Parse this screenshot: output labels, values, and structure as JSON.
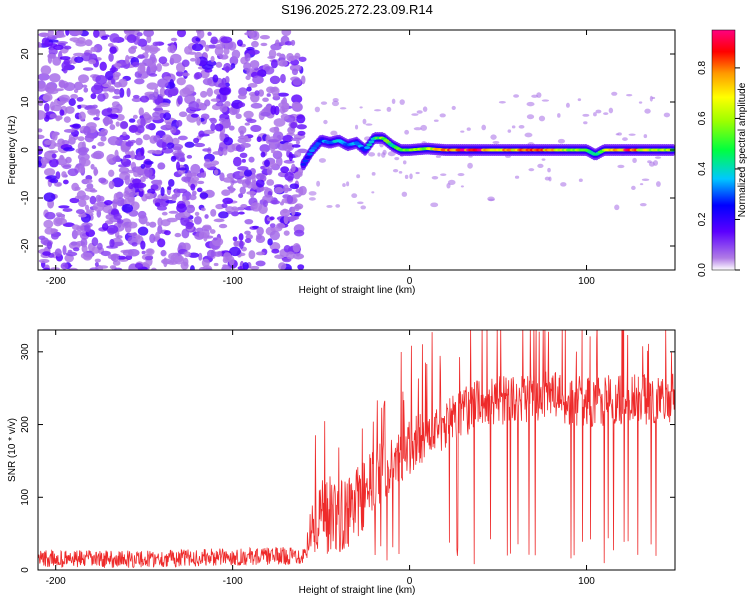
{
  "chart_data": [
    {
      "type": "heatmap",
      "title": "S196.2025.272.23.09.R14",
      "xlabel": "Height of straight line (km)",
      "ylabel": "Frequency (Hz)",
      "xlim": [
        -210,
        150
      ],
      "ylim": [
        -25,
        25
      ],
      "x_ticks": [
        -200,
        -100,
        0,
        100
      ],
      "x_tick_labels": [
        "-200",
        "-100",
        "0",
        "100"
      ],
      "y_ticks": [
        -20,
        -10,
        0,
        10,
        20
      ],
      "y_tick_labels": [
        "-20",
        "-10",
        "0",
        "10",
        "20"
      ],
      "noise_region_x": [
        -210,
        -60
      ],
      "colorbar": {
        "label": "Normalized spectral amplitude",
        "range": [
          0,
          0.95
        ],
        "ticks": [
          0.0,
          0.2,
          0.4,
          0.6,
          0.8
        ],
        "tick_labels": [
          "0.0",
          "0.2",
          "0.4",
          "0.6",
          "0.8"
        ]
      },
      "signal_track": [
        {
          "x": -60,
          "y": -3,
          "amp": 0.25
        },
        {
          "x": -55,
          "y": 0,
          "amp": 0.3
        },
        {
          "x": -50,
          "y": 2,
          "amp": 0.3
        },
        {
          "x": -45,
          "y": 1.5,
          "amp": 0.35
        },
        {
          "x": -40,
          "y": 2,
          "amp": 0.35
        },
        {
          "x": -35,
          "y": 1,
          "amp": 0.3
        },
        {
          "x": -30,
          "y": 1.5,
          "amp": 0.35
        },
        {
          "x": -25,
          "y": 0,
          "amp": 0.3
        },
        {
          "x": -20,
          "y": 2.5,
          "amp": 0.45
        },
        {
          "x": -15,
          "y": 2.5,
          "amp": 0.55
        },
        {
          "x": -10,
          "y": 1,
          "amp": 0.45
        },
        {
          "x": -5,
          "y": 0,
          "amp": 0.5
        },
        {
          "x": 0,
          "y": 0,
          "amp": 0.55
        },
        {
          "x": 10,
          "y": 0.3,
          "amp": 0.6
        },
        {
          "x": 20,
          "y": 0,
          "amp": 0.75
        },
        {
          "x": 30,
          "y": 0,
          "amp": 0.85
        },
        {
          "x": 40,
          "y": 0,
          "amp": 0.85
        },
        {
          "x": 50,
          "y": 0,
          "amp": 0.75
        },
        {
          "x": 60,
          "y": 0,
          "amp": 0.7
        },
        {
          "x": 70,
          "y": 0,
          "amp": 0.8
        },
        {
          "x": 80,
          "y": 0,
          "amp": 0.7
        },
        {
          "x": 90,
          "y": 0,
          "amp": 0.6
        },
        {
          "x": 100,
          "y": 0,
          "amp": 0.55
        },
        {
          "x": 105,
          "y": -1,
          "amp": 0.4
        },
        {
          "x": 110,
          "y": 0,
          "amp": 0.6
        },
        {
          "x": 120,
          "y": 0,
          "amp": 0.75
        },
        {
          "x": 125,
          "y": 0,
          "amp": 0.9
        },
        {
          "x": 130,
          "y": 0,
          "amp": 0.65
        },
        {
          "x": 140,
          "y": 0,
          "amp": 0.6
        },
        {
          "x": 150,
          "y": 0,
          "amp": 0.55
        }
      ]
    },
    {
      "type": "line",
      "xlabel": "Height of straight line (km)",
      "ylabel": "SNR (10 * v/v)",
      "xlim": [
        -210,
        150
      ],
      "ylim": [
        0,
        330
      ],
      "x_ticks": [
        -200,
        -100,
        0,
        100
      ],
      "x_tick_labels": [
        "-200",
        "-100",
        "0",
        "100"
      ],
      "y_ticks": [
        0,
        100,
        200,
        300
      ],
      "y_tick_labels": [
        "0",
        "100",
        "200",
        "300"
      ],
      "color": "#ee2a2a",
      "envelope": [
        {
          "x": -210,
          "base": 15,
          "noise": 12
        },
        {
          "x": -150,
          "base": 15,
          "noise": 12
        },
        {
          "x": -100,
          "base": 18,
          "noise": 12
        },
        {
          "x": -60,
          "base": 20,
          "noise": 12
        },
        {
          "x": -55,
          "base": 60,
          "noise": 40
        },
        {
          "x": -50,
          "base": 80,
          "noise": 60
        },
        {
          "x": -40,
          "base": 70,
          "noise": 50
        },
        {
          "x": -30,
          "base": 90,
          "noise": 50
        },
        {
          "x": -20,
          "base": 120,
          "noise": 50
        },
        {
          "x": -10,
          "base": 150,
          "noise": 40
        },
        {
          "x": 0,
          "base": 170,
          "noise": 40
        },
        {
          "x": 20,
          "base": 200,
          "noise": 35
        },
        {
          "x": 40,
          "base": 230,
          "noise": 35
        },
        {
          "x": 60,
          "base": 235,
          "noise": 35
        },
        {
          "x": 80,
          "base": 240,
          "noise": 35
        },
        {
          "x": 100,
          "base": 230,
          "noise": 35
        },
        {
          "x": 120,
          "base": 235,
          "noise": 35
        },
        {
          "x": 150,
          "base": 235,
          "noise": 35
        }
      ]
    }
  ]
}
